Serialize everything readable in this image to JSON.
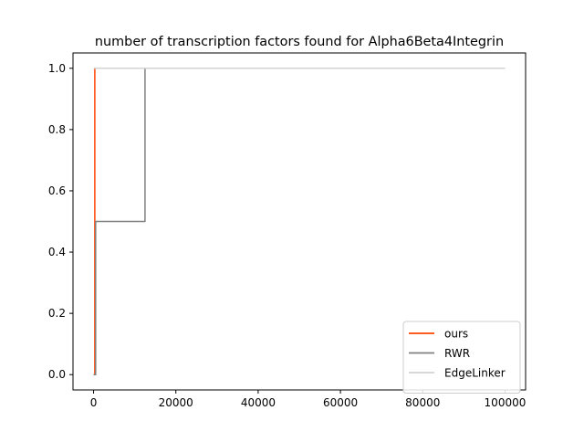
{
  "chart_data": {
    "type": "line",
    "title": "number of transcription factors found for Alpha6Beta4Integrin",
    "xlabel": "",
    "ylabel": "",
    "xlim": [
      -5000,
      105000
    ],
    "ylim": [
      -0.05,
      1.05
    ],
    "x_ticks": [
      0,
      20000,
      40000,
      60000,
      80000,
      100000
    ],
    "y_ticks": [
      0.0,
      0.2,
      0.4,
      0.6,
      0.8,
      1.0
    ],
    "x_tick_labels": [
      "0",
      "20000",
      "40000",
      "60000",
      "80000",
      "100000"
    ],
    "y_tick_labels": [
      "0.0",
      "0.2",
      "0.4",
      "0.6",
      "0.8",
      "1.0"
    ],
    "grid": false,
    "legend_position": "lower-right",
    "series": [
      {
        "name": "ours",
        "color": "#ff4500",
        "step": "post",
        "x": [
          0,
          300,
          300,
          100000
        ],
        "y": [
          0.0,
          0.0,
          1.0,
          1.0
        ]
      },
      {
        "name": "RWR",
        "color": "#808080",
        "step": "post",
        "x": [
          0,
          500,
          500,
          12500,
          12500,
          100000
        ],
        "y": [
          0.0,
          0.0,
          0.5,
          0.5,
          1.0,
          1.0
        ]
      },
      {
        "name": "EdgeLinker",
        "color": "#d3d3d3",
        "step": "post",
        "x": [
          0,
          100000
        ],
        "y": [
          1.0,
          1.0
        ]
      }
    ]
  }
}
